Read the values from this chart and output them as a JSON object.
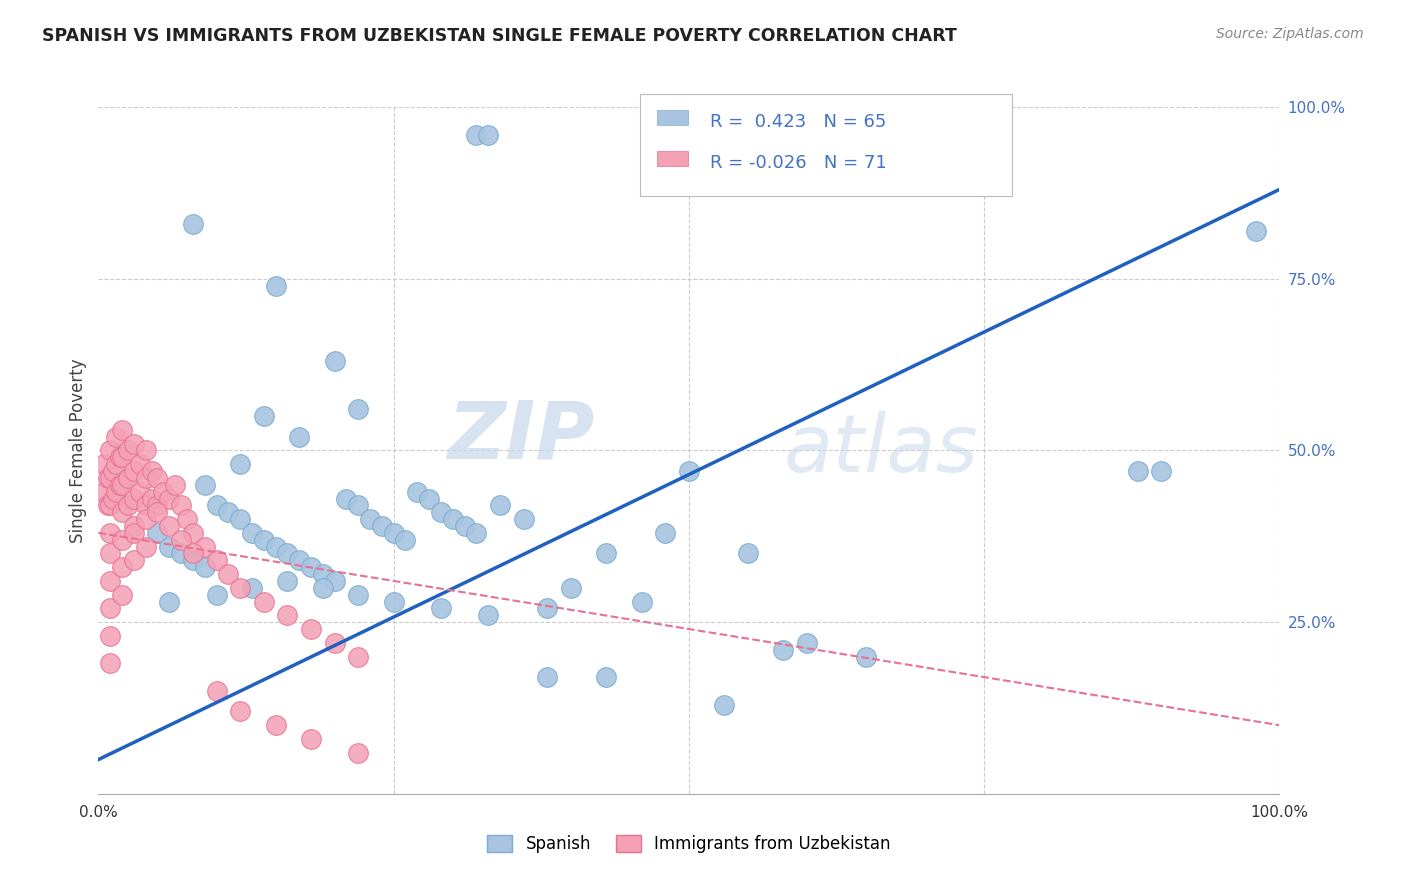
{
  "title": "SPANISH VS IMMIGRANTS FROM UZBEKISTAN SINGLE FEMALE POVERTY CORRELATION CHART",
  "source": "Source: ZipAtlas.com",
  "ylabel": "Single Female Poverty",
  "watermark_zip": "ZIP",
  "watermark_atlas": "atlas",
  "legend_blue_r": "0.423",
  "legend_blue_n": "65",
  "legend_pink_r": "-0.026",
  "legend_pink_n": "71",
  "legend_blue_label": "Spanish",
  "legend_pink_label": "Immigrants from Uzbekistan",
  "xlim": [
    0,
    1
  ],
  "ylim": [
    0,
    1
  ],
  "blue_scatter_color": "#a8c4e0",
  "blue_scatter_edge": "#7aadd0",
  "pink_scatter_color": "#f4a0b5",
  "pink_scatter_edge": "#e87090",
  "blue_line_color": "#2060c0",
  "pink_line_color": "#e87090",
  "grid_color": "#cccccc",
  "background_color": "#ffffff",
  "right_tick_color": "#4472c4",
  "title_color": "#222222",
  "source_color": "#888888",
  "blue_x": [
    0.32,
    0.33,
    0.08,
    0.15,
    0.2,
    0.22,
    0.14,
    0.17,
    0.12,
    0.09,
    0.05,
    0.06,
    0.07,
    0.08,
    0.09,
    0.1,
    0.11,
    0.12,
    0.13,
    0.14,
    0.15,
    0.16,
    0.17,
    0.18,
    0.19,
    0.2,
    0.21,
    0.22,
    0.23,
    0.24,
    0.25,
    0.26,
    0.27,
    0.28,
    0.29,
    0.3,
    0.31,
    0.32,
    0.34,
    0.36,
    0.38,
    0.4,
    0.43,
    0.46,
    0.5,
    0.55,
    0.6,
    0.65,
    0.88,
    0.9,
    0.06,
    0.1,
    0.13,
    0.16,
    0.19,
    0.22,
    0.25,
    0.29,
    0.33,
    0.38,
    0.43,
    0.48,
    0.53,
    0.58,
    0.98
  ],
  "blue_y": [
    0.96,
    0.96,
    0.83,
    0.74,
    0.63,
    0.56,
    0.55,
    0.52,
    0.48,
    0.45,
    0.38,
    0.36,
    0.35,
    0.34,
    0.33,
    0.42,
    0.41,
    0.4,
    0.38,
    0.37,
    0.36,
    0.35,
    0.34,
    0.33,
    0.32,
    0.31,
    0.43,
    0.42,
    0.4,
    0.39,
    0.38,
    0.37,
    0.44,
    0.43,
    0.41,
    0.4,
    0.39,
    0.38,
    0.42,
    0.4,
    0.27,
    0.3,
    0.35,
    0.28,
    0.47,
    0.35,
    0.22,
    0.2,
    0.47,
    0.47,
    0.28,
    0.29,
    0.3,
    0.31,
    0.3,
    0.29,
    0.28,
    0.27,
    0.26,
    0.17,
    0.17,
    0.38,
    0.13,
    0.21,
    0.82
  ],
  "pink_x": [
    0.005,
    0.005,
    0.008,
    0.008,
    0.01,
    0.01,
    0.01,
    0.01,
    0.012,
    0.012,
    0.015,
    0.015,
    0.015,
    0.018,
    0.018,
    0.02,
    0.02,
    0.02,
    0.02,
    0.025,
    0.025,
    0.025,
    0.03,
    0.03,
    0.03,
    0.03,
    0.035,
    0.035,
    0.04,
    0.04,
    0.04,
    0.045,
    0.045,
    0.05,
    0.05,
    0.055,
    0.06,
    0.065,
    0.07,
    0.075,
    0.08,
    0.09,
    0.1,
    0.11,
    0.12,
    0.14,
    0.16,
    0.18,
    0.2,
    0.22,
    0.01,
    0.01,
    0.01,
    0.01,
    0.01,
    0.02,
    0.02,
    0.02,
    0.03,
    0.03,
    0.04,
    0.04,
    0.05,
    0.06,
    0.07,
    0.08,
    0.1,
    0.12,
    0.15,
    0.18,
    0.22
  ],
  "pink_y": [
    0.48,
    0.44,
    0.46,
    0.42,
    0.5,
    0.46,
    0.42,
    0.38,
    0.47,
    0.43,
    0.52,
    0.48,
    0.44,
    0.49,
    0.45,
    0.53,
    0.49,
    0.45,
    0.41,
    0.5,
    0.46,
    0.42,
    0.51,
    0.47,
    0.43,
    0.39,
    0.48,
    0.44,
    0.5,
    0.46,
    0.42,
    0.47,
    0.43,
    0.46,
    0.42,
    0.44,
    0.43,
    0.45,
    0.42,
    0.4,
    0.38,
    0.36,
    0.34,
    0.32,
    0.3,
    0.28,
    0.26,
    0.24,
    0.22,
    0.2,
    0.35,
    0.31,
    0.27,
    0.23,
    0.19,
    0.37,
    0.33,
    0.29,
    0.38,
    0.34,
    0.4,
    0.36,
    0.41,
    0.39,
    0.37,
    0.35,
    0.15,
    0.12,
    0.1,
    0.08,
    0.06
  ],
  "blue_line_x0": 0.0,
  "blue_line_y0": 0.05,
  "blue_line_x1": 1.0,
  "blue_line_y1": 0.88,
  "pink_line_x0": 0.0,
  "pink_line_y0": 0.38,
  "pink_line_x1": 1.0,
  "pink_line_y1": 0.1
}
